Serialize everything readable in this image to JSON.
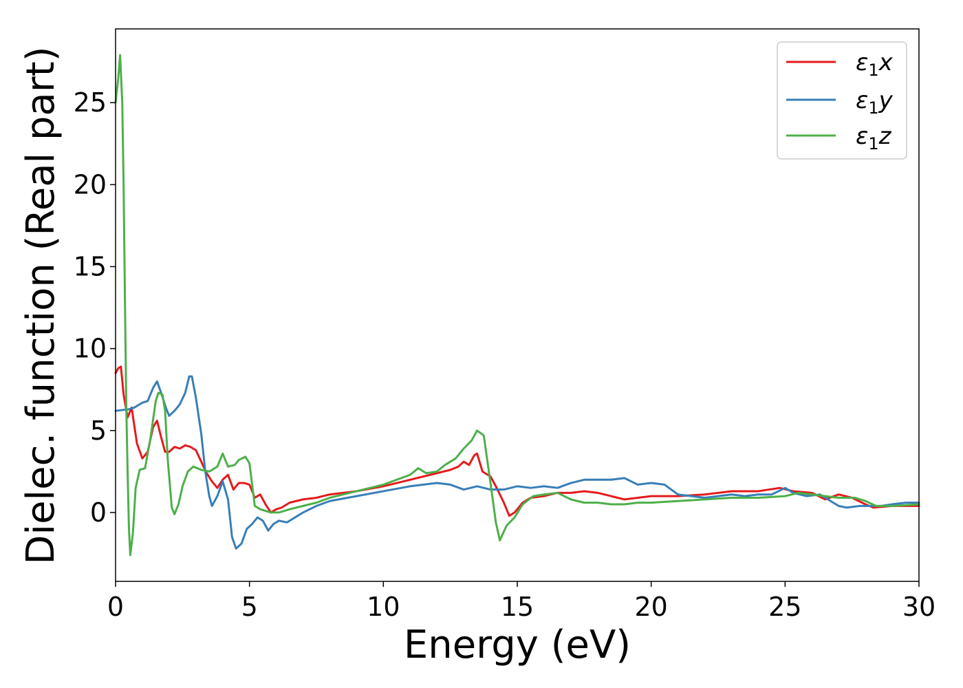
{
  "chart_data": {
    "type": "line",
    "xlabel": "Energy (eV)",
    "ylabel": "Dielec. function (Real part)",
    "xlim": [
      0,
      30
    ],
    "ylim": [
      -4.2,
      29.5
    ],
    "xticks": [
      0,
      5,
      10,
      15,
      20,
      25,
      30
    ],
    "yticks": [
      0,
      5,
      10,
      15,
      20,
      25
    ],
    "xtick_labels": [
      "0",
      "5",
      "10",
      "15",
      "20",
      "25",
      "30"
    ],
    "ytick_labels": [
      "0",
      "5",
      "10",
      "15",
      "20",
      "25"
    ],
    "grid": false,
    "legend": "top-right",
    "series": [
      {
        "name": "ε1x",
        "legend_main": "ε",
        "legend_sub": "1",
        "legend_tail": "x",
        "color": "#e41a1c",
        "points": [
          [
            0.0,
            8.5
          ],
          [
            0.1,
            8.8
          ],
          [
            0.2,
            8.9
          ],
          [
            0.3,
            7.2
          ],
          [
            0.45,
            5.8
          ],
          [
            0.6,
            6.4
          ],
          [
            0.8,
            4.2
          ],
          [
            1.0,
            3.3
          ],
          [
            1.2,
            3.7
          ],
          [
            1.4,
            5.2
          ],
          [
            1.55,
            5.6
          ],
          [
            1.7,
            4.6
          ],
          [
            1.85,
            3.7
          ],
          [
            2.0,
            3.7
          ],
          [
            2.2,
            4.0
          ],
          [
            2.4,
            3.9
          ],
          [
            2.6,
            4.1
          ],
          [
            2.8,
            4.0
          ],
          [
            3.0,
            3.8
          ],
          [
            3.2,
            3.1
          ],
          [
            3.4,
            2.4
          ],
          [
            3.6,
            1.9
          ],
          [
            3.8,
            1.5
          ],
          [
            4.0,
            2.0
          ],
          [
            4.2,
            2.3
          ],
          [
            4.4,
            1.4
          ],
          [
            4.6,
            1.8
          ],
          [
            4.8,
            1.8
          ],
          [
            5.0,
            1.7
          ],
          [
            5.2,
            0.9
          ],
          [
            5.4,
            1.1
          ],
          [
            5.6,
            0.5
          ],
          [
            5.8,
            0.0
          ],
          [
            6.0,
            0.2
          ],
          [
            6.2,
            0.3
          ],
          [
            6.5,
            0.6
          ],
          [
            7.0,
            0.8
          ],
          [
            7.5,
            0.9
          ],
          [
            8.0,
            1.1
          ],
          [
            9.0,
            1.3
          ],
          [
            10.0,
            1.6
          ],
          [
            11.0,
            2.0
          ],
          [
            12.0,
            2.4
          ],
          [
            12.5,
            2.6
          ],
          [
            12.8,
            2.8
          ],
          [
            13.0,
            3.1
          ],
          [
            13.2,
            2.9
          ],
          [
            13.4,
            3.5
          ],
          [
            13.5,
            3.6
          ],
          [
            13.7,
            2.5
          ],
          [
            14.0,
            2.2
          ],
          [
            14.2,
            1.6
          ],
          [
            14.5,
            0.6
          ],
          [
            14.7,
            -0.2
          ],
          [
            14.9,
            0.0
          ],
          [
            15.2,
            0.6
          ],
          [
            15.5,
            0.9
          ],
          [
            16.0,
            1.0
          ],
          [
            16.5,
            1.2
          ],
          [
            17.0,
            1.2
          ],
          [
            17.5,
            1.3
          ],
          [
            18.0,
            1.2
          ],
          [
            18.5,
            1.0
          ],
          [
            19.0,
            0.8
          ],
          [
            19.5,
            0.9
          ],
          [
            20.0,
            1.0
          ],
          [
            21.0,
            1.0
          ],
          [
            22.0,
            1.1
          ],
          [
            23.0,
            1.3
          ],
          [
            24.0,
            1.3
          ],
          [
            24.8,
            1.5
          ],
          [
            25.3,
            1.3
          ],
          [
            26.0,
            1.2
          ],
          [
            26.5,
            0.8
          ],
          [
            27.0,
            1.1
          ],
          [
            27.5,
            0.9
          ],
          [
            28.0,
            0.5
          ],
          [
            28.3,
            0.3
          ],
          [
            29.0,
            0.4
          ],
          [
            30.0,
            0.4
          ]
        ]
      },
      {
        "name": "ε1y",
        "legend_main": "ε",
        "legend_sub": "1",
        "legend_tail": "y",
        "color": "#377eb8",
        "points": [
          [
            0.0,
            6.2
          ],
          [
            0.5,
            6.3
          ],
          [
            0.7,
            6.4
          ],
          [
            1.0,
            6.7
          ],
          [
            1.2,
            6.8
          ],
          [
            1.4,
            7.6
          ],
          [
            1.55,
            8.0
          ],
          [
            1.7,
            7.3
          ],
          [
            1.9,
            6.3
          ],
          [
            2.0,
            5.9
          ],
          [
            2.2,
            6.2
          ],
          [
            2.4,
            6.6
          ],
          [
            2.6,
            7.3
          ],
          [
            2.75,
            8.3
          ],
          [
            2.85,
            8.3
          ],
          [
            3.0,
            7.0
          ],
          [
            3.2,
            4.8
          ],
          [
            3.35,
            2.5
          ],
          [
            3.5,
            1.0
          ],
          [
            3.6,
            0.4
          ],
          [
            3.8,
            1.0
          ],
          [
            4.0,
            1.9
          ],
          [
            4.2,
            0.8
          ],
          [
            4.35,
            -1.5
          ],
          [
            4.5,
            -2.2
          ],
          [
            4.7,
            -1.9
          ],
          [
            4.9,
            -1.0
          ],
          [
            5.1,
            -0.7
          ],
          [
            5.3,
            -0.3
          ],
          [
            5.5,
            -0.5
          ],
          [
            5.7,
            -1.1
          ],
          [
            5.9,
            -0.7
          ],
          [
            6.1,
            -0.5
          ],
          [
            6.4,
            -0.6
          ],
          [
            7.0,
            0.0
          ],
          [
            7.5,
            0.4
          ],
          [
            8.0,
            0.7
          ],
          [
            9.0,
            1.0
          ],
          [
            10.0,
            1.3
          ],
          [
            11.0,
            1.6
          ],
          [
            12.0,
            1.8
          ],
          [
            12.5,
            1.7
          ],
          [
            13.0,
            1.4
          ],
          [
            13.5,
            1.6
          ],
          [
            14.0,
            1.4
          ],
          [
            14.5,
            1.4
          ],
          [
            15.0,
            1.6
          ],
          [
            15.5,
            1.5
          ],
          [
            16.0,
            1.6
          ],
          [
            16.5,
            1.5
          ],
          [
            17.0,
            1.8
          ],
          [
            17.5,
            2.0
          ],
          [
            18.0,
            2.0
          ],
          [
            18.5,
            2.0
          ],
          [
            19.0,
            2.1
          ],
          [
            19.5,
            1.7
          ],
          [
            20.0,
            1.8
          ],
          [
            20.5,
            1.7
          ],
          [
            21.0,
            1.1
          ],
          [
            21.5,
            1.0
          ],
          [
            22.0,
            0.9
          ],
          [
            22.5,
            1.0
          ],
          [
            23.0,
            1.1
          ],
          [
            23.5,
            1.0
          ],
          [
            24.0,
            1.1
          ],
          [
            24.5,
            1.1
          ],
          [
            25.0,
            1.5
          ],
          [
            25.3,
            1.2
          ],
          [
            25.8,
            1.0
          ],
          [
            26.3,
            1.1
          ],
          [
            26.6,
            0.8
          ],
          [
            27.0,
            0.4
          ],
          [
            27.3,
            0.3
          ],
          [
            27.8,
            0.4
          ],
          [
            28.2,
            0.4
          ],
          [
            28.6,
            0.4
          ],
          [
            29.0,
            0.5
          ],
          [
            29.5,
            0.6
          ],
          [
            30.0,
            0.6
          ]
        ]
      },
      {
        "name": "ε1z",
        "legend_main": "ε",
        "legend_sub": "1",
        "legend_tail": "z",
        "color": "#4daf4a",
        "points": [
          [
            0.0,
            25.0
          ],
          [
            0.1,
            26.5
          ],
          [
            0.17,
            27.9
          ],
          [
            0.25,
            25.0
          ],
          [
            0.3,
            20.0
          ],
          [
            0.35,
            13.0
          ],
          [
            0.4,
            6.5
          ],
          [
            0.45,
            2.5
          ],
          [
            0.5,
            -1.0
          ],
          [
            0.55,
            -2.6
          ],
          [
            0.65,
            -1.2
          ],
          [
            0.75,
            1.5
          ],
          [
            0.9,
            2.6
          ],
          [
            1.1,
            2.7
          ],
          [
            1.3,
            4.5
          ],
          [
            1.5,
            6.8
          ],
          [
            1.6,
            7.3
          ],
          [
            1.75,
            7.2
          ],
          [
            1.85,
            6.2
          ],
          [
            1.95,
            3.2
          ],
          [
            2.1,
            0.3
          ],
          [
            2.2,
            -0.1
          ],
          [
            2.35,
            0.5
          ],
          [
            2.5,
            1.6
          ],
          [
            2.7,
            2.5
          ],
          [
            2.9,
            2.8
          ],
          [
            3.2,
            2.6
          ],
          [
            3.5,
            2.5
          ],
          [
            3.8,
            2.8
          ],
          [
            4.0,
            3.6
          ],
          [
            4.2,
            2.8
          ],
          [
            4.45,
            2.9
          ],
          [
            4.6,
            3.2
          ],
          [
            4.85,
            3.4
          ],
          [
            5.0,
            3.0
          ],
          [
            5.2,
            0.4
          ],
          [
            5.4,
            0.2
          ],
          [
            5.8,
            0.0
          ],
          [
            6.1,
            0.0
          ],
          [
            6.5,
            0.2
          ],
          [
            7.0,
            0.4
          ],
          [
            7.5,
            0.6
          ],
          [
            8.0,
            0.9
          ],
          [
            9.0,
            1.3
          ],
          [
            10.0,
            1.7
          ],
          [
            11.0,
            2.3
          ],
          [
            11.3,
            2.7
          ],
          [
            11.6,
            2.4
          ],
          [
            12.0,
            2.5
          ],
          [
            12.3,
            2.9
          ],
          [
            12.7,
            3.3
          ],
          [
            13.0,
            3.9
          ],
          [
            13.3,
            4.4
          ],
          [
            13.5,
            5.0
          ],
          [
            13.75,
            4.7
          ],
          [
            14.0,
            1.8
          ],
          [
            14.2,
            -0.6
          ],
          [
            14.35,
            -1.7
          ],
          [
            14.6,
            -0.8
          ],
          [
            14.9,
            -0.3
          ],
          [
            15.2,
            0.5
          ],
          [
            15.6,
            1.0
          ],
          [
            16.0,
            1.1
          ],
          [
            16.5,
            1.2
          ],
          [
            17.0,
            0.8
          ],
          [
            17.5,
            0.6
          ],
          [
            18.0,
            0.6
          ],
          [
            18.5,
            0.5
          ],
          [
            19.0,
            0.5
          ],
          [
            19.5,
            0.6
          ],
          [
            20.0,
            0.6
          ],
          [
            21.0,
            0.7
          ],
          [
            22.0,
            0.8
          ],
          [
            23.0,
            0.9
          ],
          [
            24.0,
            0.9
          ],
          [
            25.0,
            1.0
          ],
          [
            25.5,
            1.2
          ],
          [
            26.0,
            1.1
          ],
          [
            26.5,
            1.0
          ],
          [
            27.0,
            0.9
          ],
          [
            27.6,
            0.9
          ],
          [
            28.0,
            0.7
          ],
          [
            28.4,
            0.4
          ],
          [
            29.0,
            0.4
          ],
          [
            30.0,
            0.5
          ]
        ]
      }
    ]
  }
}
